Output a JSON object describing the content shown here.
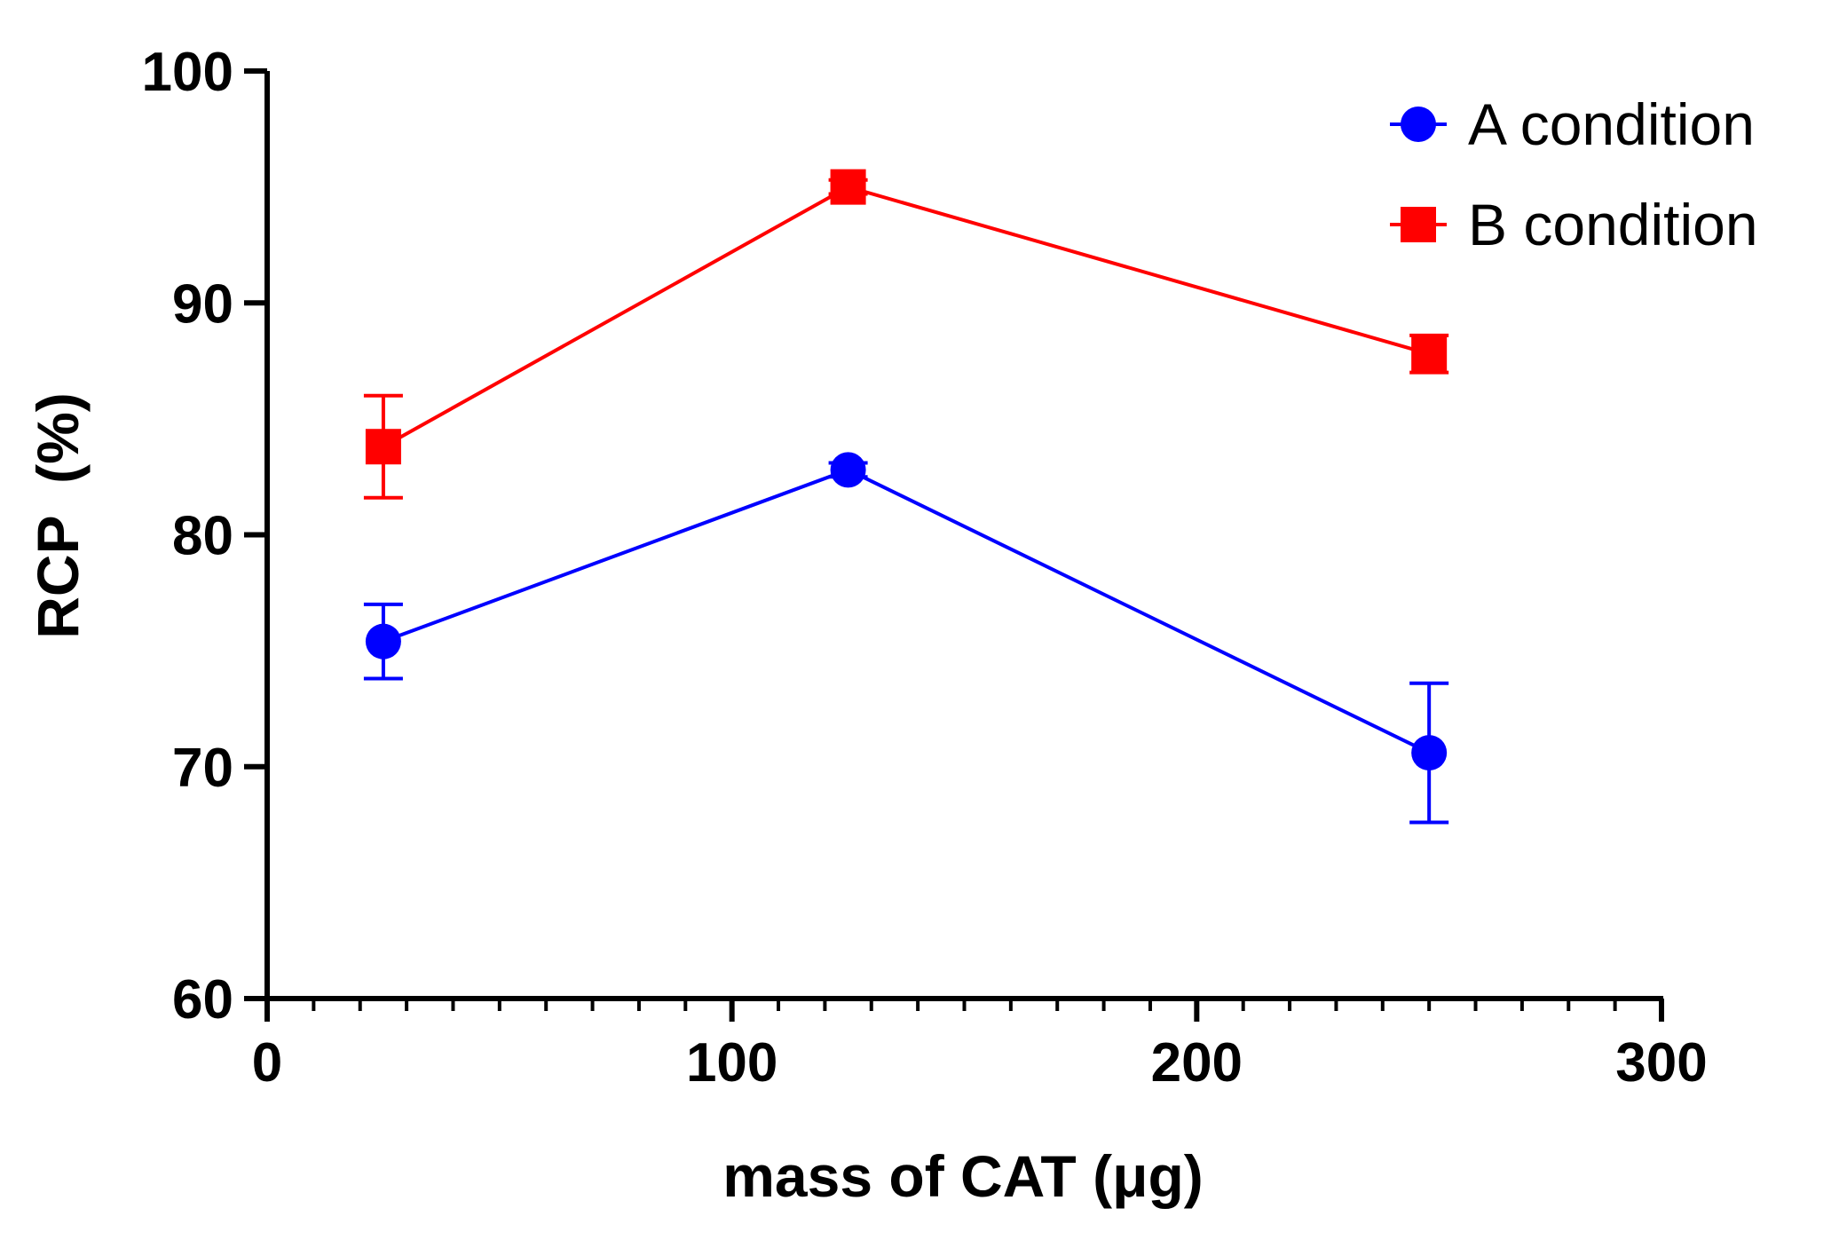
{
  "chart_data": {
    "type": "line",
    "title": "",
    "xlabel": "mass of CAT (μg)",
    "ylabel": "RCP  (%)",
    "xlim": [
      0,
      300
    ],
    "ylim": [
      60,
      100
    ],
    "x_major_ticks": [
      0,
      100,
      200,
      300
    ],
    "x_minor_step": 10,
    "y_major_ticks": [
      60,
      70,
      80,
      90,
      100
    ],
    "x_tick_labels": [
      "0",
      "100",
      "200",
      "300"
    ],
    "y_tick_labels": [
      "60",
      "70",
      "80",
      "90",
      "100"
    ],
    "grid": false,
    "legend_position": "top-right",
    "series": [
      {
        "name": "A condition",
        "color": "#0000ff",
        "marker": "circle",
        "x": [
          25,
          125,
          250
        ],
        "y": [
          75.4,
          82.8,
          70.6
        ],
        "err": [
          1.6,
          0.3,
          3.0
        ]
      },
      {
        "name": "B condition",
        "color": "#ff0000",
        "marker": "square",
        "x": [
          25,
          125,
          250
        ],
        "y": [
          83.8,
          95.0,
          87.8
        ],
        "err": [
          2.2,
          0.3,
          0.8
        ]
      }
    ]
  }
}
